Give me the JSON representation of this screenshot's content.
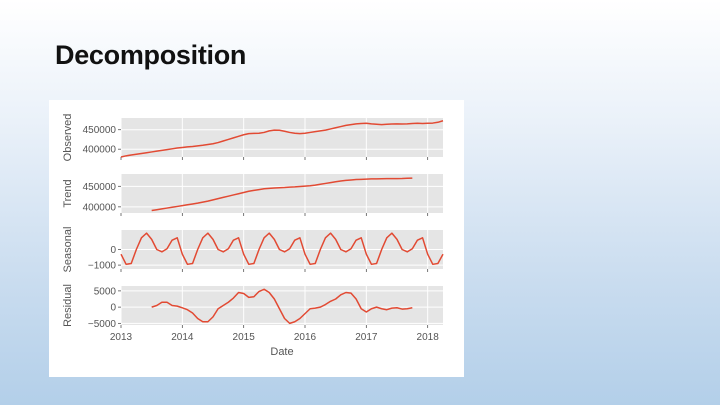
{
  "slide": {
    "title": "Decomposition"
  },
  "chart_data": {
    "type": "line",
    "xlabel": "Date",
    "x_ticks": [
      "2013",
      "2014",
      "2015",
      "2016",
      "2017",
      "2018"
    ],
    "x_range": [
      "2013-01",
      "2018-04"
    ],
    "line_color": "#E24A33",
    "panel_bg": "#E5E5E5",
    "grid": true,
    "dates": [
      "2013-01",
      "2013-02",
      "2013-03",
      "2013-04",
      "2013-05",
      "2013-06",
      "2013-07",
      "2013-08",
      "2013-09",
      "2013-10",
      "2013-11",
      "2013-12",
      "2014-01",
      "2014-02",
      "2014-03",
      "2014-04",
      "2014-05",
      "2014-06",
      "2014-07",
      "2014-08",
      "2014-09",
      "2014-10",
      "2014-11",
      "2014-12",
      "2015-01",
      "2015-02",
      "2015-03",
      "2015-04",
      "2015-05",
      "2015-06",
      "2015-07",
      "2015-08",
      "2015-09",
      "2015-10",
      "2015-11",
      "2015-12",
      "2016-01",
      "2016-02",
      "2016-03",
      "2016-04",
      "2016-05",
      "2016-06",
      "2016-07",
      "2016-08",
      "2016-09",
      "2016-10",
      "2016-11",
      "2016-12",
      "2017-01",
      "2017-02",
      "2017-03",
      "2017-04",
      "2017-05",
      "2017-06",
      "2017-07",
      "2017-08",
      "2017-09",
      "2017-10",
      "2017-11",
      "2017-12",
      "2018-01",
      "2018-02",
      "2018-03",
      "2018-04"
    ],
    "panels": [
      {
        "name": "observed",
        "ylabel": "Observed",
        "yticks": [
          400000,
          450000
        ],
        "ytick_labels": [
          "400000",
          "450000"
        ],
        "ylim": [
          380000,
          480000
        ],
        "values": [
          380000,
          383000,
          385000,
          387000,
          389000,
          391000,
          393000,
          395000,
          397000,
          399000,
          401000,
          403000,
          404500,
          406000,
          407000,
          408500,
          410000,
          412000,
          414000,
          417000,
          421000,
          425000,
          429000,
          433000,
          437000,
          440000,
          440500,
          441000,
          443000,
          447000,
          449000,
          448500,
          446000,
          443000,
          441000,
          440000,
          441000,
          443000,
          445000,
          447000,
          449000,
          452000,
          455000,
          458000,
          461000,
          463000,
          465000,
          466000,
          466500,
          465000,
          464000,
          463000,
          464000,
          464500,
          465000,
          464500,
          465000,
          466000,
          466500,
          466000,
          466500,
          467000,
          469000,
          473000
        ]
      },
      {
        "name": "trend",
        "ylabel": "Trend",
        "yticks": [
          400000,
          450000
        ],
        "ytick_labels": [
          "400000",
          "450000"
        ],
        "ylim": [
          385000,
          480000
        ],
        "values": [
          null,
          null,
          null,
          null,
          null,
          null,
          391000,
          393000,
          395000,
          397000,
          399000,
          401000,
          403000,
          405000,
          407000,
          409000,
          411500,
          414000,
          417000,
          420000,
          423000,
          426000,
          429000,
          432000,
          435000,
          438000,
          440000,
          442000,
          444000,
          445000,
          446000,
          446500,
          447000,
          448000,
          448500,
          449500,
          450500,
          451500,
          453000,
          455000,
          457000,
          459000,
          461000,
          463000,
          464500,
          465500,
          466500,
          467000,
          467500,
          468000,
          468200,
          468400,
          468600,
          468700,
          468800,
          469000,
          469500,
          470000,
          null,
          null,
          null,
          null,
          null,
          null
        ]
      },
      {
        "name": "seasonal",
        "ylabel": "Seasonal",
        "yticks": [
          -1000,
          0
        ],
        "ytick_labels": [
          "−1000",
          "0"
        ],
        "ylim": [
          -1250,
          1250
        ],
        "values": [
          -300,
          -950,
          -900,
          0,
          750,
          1050,
          650,
          0,
          -150,
          50,
          600,
          750,
          -300,
          -950,
          -900,
          0,
          750,
          1050,
          650,
          0,
          -150,
          50,
          600,
          750,
          -300,
          -950,
          -900,
          0,
          750,
          1050,
          650,
          0,
          -150,
          50,
          600,
          750,
          -300,
          -950,
          -900,
          0,
          750,
          1050,
          650,
          0,
          -150,
          50,
          600,
          750,
          -300,
          -950,
          -900,
          0,
          750,
          1050,
          650,
          0,
          -150,
          50,
          600,
          750,
          -300,
          -950,
          -900,
          -300
        ]
      },
      {
        "name": "residual",
        "ylabel": "Residual",
        "yticks": [
          -5000,
          0,
          5000
        ],
        "ytick_labels": [
          "−5000",
          "0",
          "5000"
        ],
        "ylim": [
          -5500,
          6500
        ],
        "values": [
          null,
          null,
          null,
          null,
          null,
          null,
          0,
          500,
          1500,
          1500,
          500,
          300,
          -200,
          -800,
          -1800,
          -3500,
          -4500,
          -4500,
          -3000,
          -500,
          500,
          1500,
          2800,
          4500,
          4200,
          3000,
          3200,
          4800,
          5500,
          4500,
          2500,
          -500,
          -3500,
          -5000,
          -4500,
          -3500,
          -2000,
          -500,
          -300,
          0,
          800,
          1800,
          2500,
          3800,
          4500,
          4300,
          2500,
          -500,
          -1500,
          -500,
          0,
          -500,
          -800,
          -300,
          -200,
          -600,
          -500,
          -200,
          null,
          null,
          null,
          null,
          null,
          null
        ]
      }
    ]
  }
}
